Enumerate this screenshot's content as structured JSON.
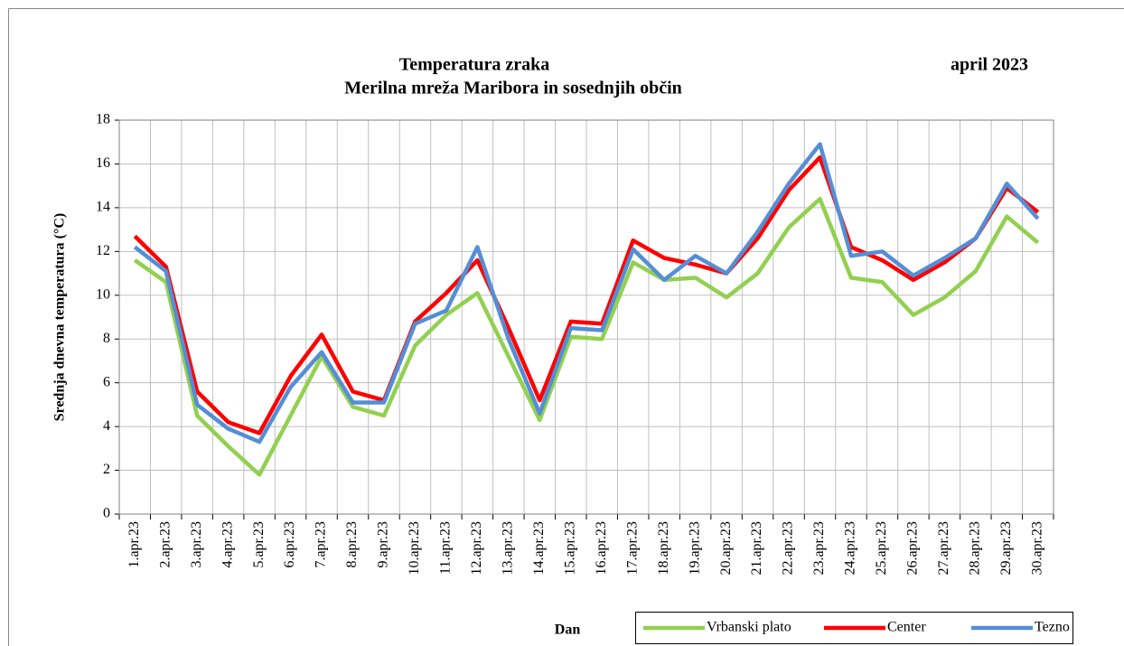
{
  "chart_data": {
    "type": "line",
    "title": "Temperatura zraka",
    "subtitle": "Merilna mreža Maribora in sosednjih občin",
    "annotation": "april 2023",
    "y_label": "Srednja dnevna temperatura (°C)",
    "x_label": "Dan",
    "categories": [
      "1.apr.23",
      "2.apr.23",
      "3.apr.23",
      "4.apr.23",
      "5.apr.23",
      "6.apr.23",
      "7.apr.23",
      "8.apr.23",
      "9.apr.23",
      "10.apr.23",
      "11.apr.23",
      "12.apr.23",
      "13.apr.23",
      "14.apr.23",
      "15.apr.23",
      "16.apr.23",
      "17.apr.23",
      "18.apr.23",
      "19.apr.23",
      "20.apr.23",
      "21.apr.23",
      "22.apr.23",
      "23.apr.23",
      "24.apr.23",
      "25.apr.23",
      "26.apr.23",
      "27.apr.23",
      "28.apr.23",
      "29.apr.23",
      "30.apr.23"
    ],
    "series": [
      {
        "name": "Vrbanski plato",
        "color": "#92d050",
        "values": [
          11.6,
          10.6,
          4.5,
          3.1,
          1.8,
          4.5,
          7.2,
          4.9,
          4.5,
          7.7,
          9.1,
          10.1,
          7.2,
          4.3,
          8.1,
          8.0,
          11.5,
          10.7,
          10.8,
          9.9,
          11.0,
          13.1,
          14.4,
          10.8,
          10.6,
          9.1,
          9.9,
          11.1,
          13.6,
          12.4
        ]
      },
      {
        "name": "Center",
        "color": "#ff0000",
        "values": [
          12.7,
          11.3,
          5.6,
          4.2,
          3.7,
          6.3,
          8.2,
          5.6,
          5.2,
          8.8,
          10.1,
          11.6,
          8.5,
          5.2,
          8.8,
          8.7,
          12.5,
          11.7,
          11.4,
          11.0,
          12.6,
          14.8,
          16.3,
          12.2,
          11.6,
          10.7,
          11.5,
          12.6,
          14.9,
          13.8
        ]
      },
      {
        "name": "Tezno",
        "color": "#558ed5",
        "values": [
          12.2,
          11.1,
          5.0,
          3.9,
          3.3,
          5.8,
          7.4,
          5.1,
          5.1,
          8.7,
          9.3,
          12.2,
          8.0,
          4.6,
          8.5,
          8.4,
          12.1,
          10.7,
          11.8,
          11.0,
          12.9,
          15.1,
          16.9,
          11.8,
          12.0,
          10.9,
          11.7,
          12.6,
          15.1,
          13.5
        ]
      }
    ],
    "ylim": [
      0,
      18
    ],
    "yticks": [
      0,
      2,
      4,
      6,
      8,
      10,
      12,
      14,
      16,
      18
    ],
    "grid": true
  }
}
